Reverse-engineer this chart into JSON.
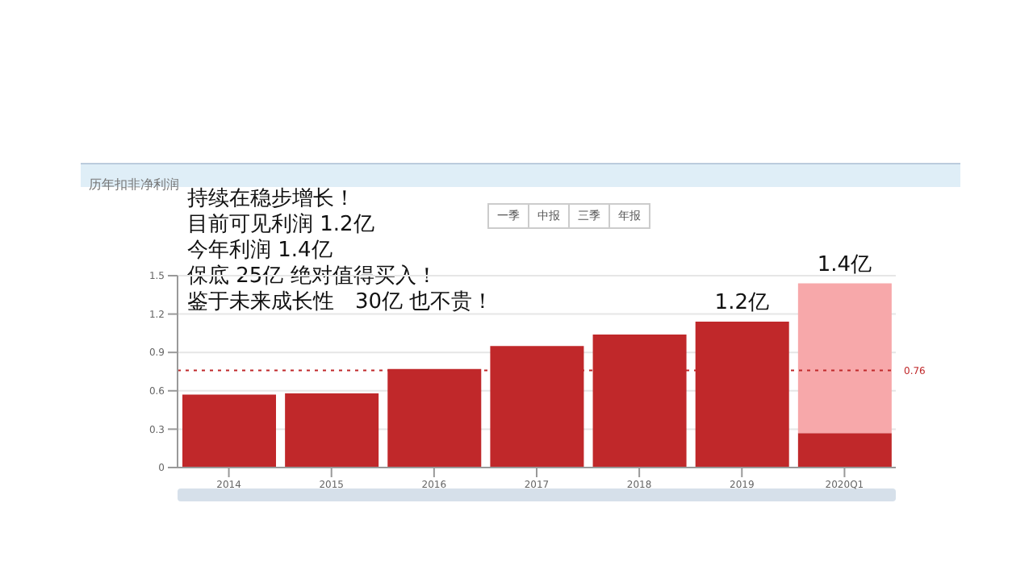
{
  "chart_data": {
    "type": "bar",
    "title": "历年扣非净利润",
    "categories": [
      "2014",
      "2015",
      "2016",
      "2017",
      "2018",
      "2019",
      "2020Q1"
    ],
    "series": [
      {
        "color": "#c0282a",
        "values": [
          0.57,
          0.58,
          0.77,
          0.95,
          1.04,
          1.14,
          0.27
        ]
      },
      {
        "color": "#f7a8aa",
        "values": [
          null,
          null,
          null,
          null,
          null,
          null,
          1.17
        ]
      }
    ],
    "stacked": true,
    "ylim": [
      0,
      1.5
    ],
    "yticks": [
      0,
      0.3,
      0.6,
      0.9,
      1.2,
      1.5
    ],
    "grid": "y",
    "ref_lines": [
      {
        "axis": "y",
        "value": 0.76,
        "label": "0.76",
        "color": "#c0282a",
        "line_style": "dotted"
      }
    ],
    "annotations": [
      "持续在稳步增长！",
      "目前可见利润 1.2亿",
      "今年利润 1.4亿",
      "保底 25亿 绝对值得买入！",
      "鉴于未来成长性　30亿 也不贵！",
      "一季",
      "中报",
      "三季",
      "年报",
      {
        "text": "1.2亿",
        "x": "2019",
        "y": 1.14
      },
      {
        "text": "1.4亿",
        "x": "2020Q1",
        "y": 1.44
      }
    ]
  }
}
